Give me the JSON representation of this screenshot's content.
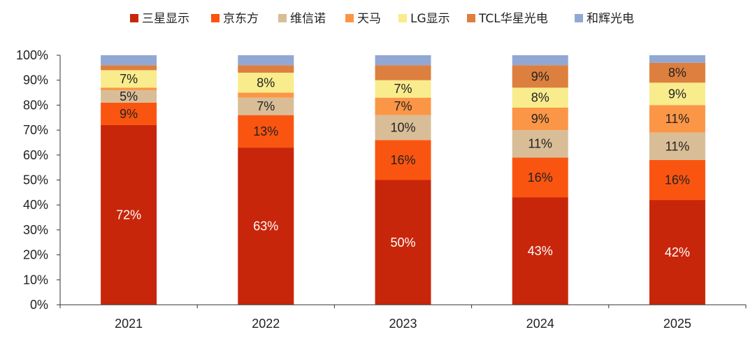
{
  "chart_data": {
    "type": "bar",
    "stacked": true,
    "categories": [
      "2021",
      "2022",
      "2023",
      "2024",
      "2025"
    ],
    "y_ticks": [
      "0%",
      "10%",
      "20%",
      "30%",
      "40%",
      "50%",
      "60%",
      "70%",
      "80%",
      "90%",
      "100%"
    ],
    "ylim": [
      0,
      100
    ],
    "legend_position": "top",
    "grid": false,
    "series": [
      {
        "name": "三星显示",
        "color": "#c8260a",
        "values": [
          72,
          63,
          50,
          43,
          42
        ],
        "labels": [
          "72%",
          "63%",
          "50%",
          "43%",
          "42%"
        ],
        "label_color": "#ffffff"
      },
      {
        "name": "京东方",
        "color": "#fa5510",
        "values": [
          9,
          13,
          16,
          16,
          16
        ],
        "labels": [
          "9%",
          "13%",
          "16%",
          "16%",
          "16%"
        ],
        "label_color": "#222222"
      },
      {
        "name": "维信诺",
        "color": "#d9bd97",
        "values": [
          5,
          7,
          10,
          11,
          11
        ],
        "labels": [
          "5%",
          "7%",
          "10%",
          "11%",
          "11%"
        ],
        "label_color": "#222222"
      },
      {
        "name": "天马",
        "color": "#fb9646",
        "values": [
          1,
          2,
          7,
          9,
          11
        ],
        "labels": [
          "",
          "",
          "7%",
          "9%",
          "11%"
        ],
        "label_color": "#222222"
      },
      {
        "name": "LG显示",
        "color": "#f8ec8c",
        "values": [
          7,
          8,
          7,
          8,
          9
        ],
        "labels": [
          "7%",
          "8%",
          "7%",
          "8%",
          "9%"
        ],
        "label_color": "#222222"
      },
      {
        "name": "TCL华星光电",
        "color": "#dd7f3e",
        "values": [
          2,
          3,
          6,
          9,
          8
        ],
        "labels": [
          "",
          "",
          "",
          "9%",
          "8%"
        ],
        "label_color": "#222222"
      },
      {
        "name": "和辉光电",
        "color": "#91a8d4",
        "values": [
          4,
          4,
          4,
          4,
          3
        ],
        "labels": [
          "",
          "",
          "",
          "",
          ""
        ],
        "label_color": "#222222"
      }
    ]
  }
}
